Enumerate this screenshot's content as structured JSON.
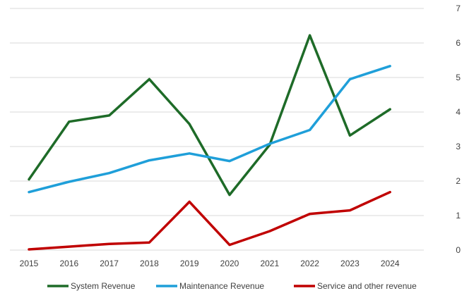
{
  "chart_data": {
    "type": "line",
    "x": [
      "2015",
      "2016",
      "2017",
      "2018",
      "2019",
      "2020",
      "2021",
      "2022",
      "2023",
      "2024"
    ],
    "series": [
      {
        "name": "System Revenue",
        "color": "#1e6b28",
        "values": [
          2.05,
          3.72,
          3.9,
          4.95,
          3.65,
          1.6,
          3.05,
          6.22,
          3.32,
          4.08
        ]
      },
      {
        "name": "Maintenance Revenue",
        "color": "#1f9fd9",
        "values": [
          1.68,
          1.98,
          2.23,
          2.6,
          2.8,
          2.58,
          3.08,
          3.48,
          4.95,
          5.33
        ]
      },
      {
        "name": "Service and other revenue",
        "color": "#c00000",
        "values": [
          0.02,
          0.1,
          0.18,
          0.22,
          1.4,
          0.15,
          0.55,
          1.05,
          1.15,
          1.68
        ]
      }
    ],
    "y_ticks": [
      "0",
      "1",
      "2",
      "3",
      "4",
      "5",
      "6",
      "7"
    ],
    "ylim": [
      0,
      7
    ],
    "y_axis_side": "right",
    "grid": "horizontal",
    "legend_position": "bottom"
  }
}
